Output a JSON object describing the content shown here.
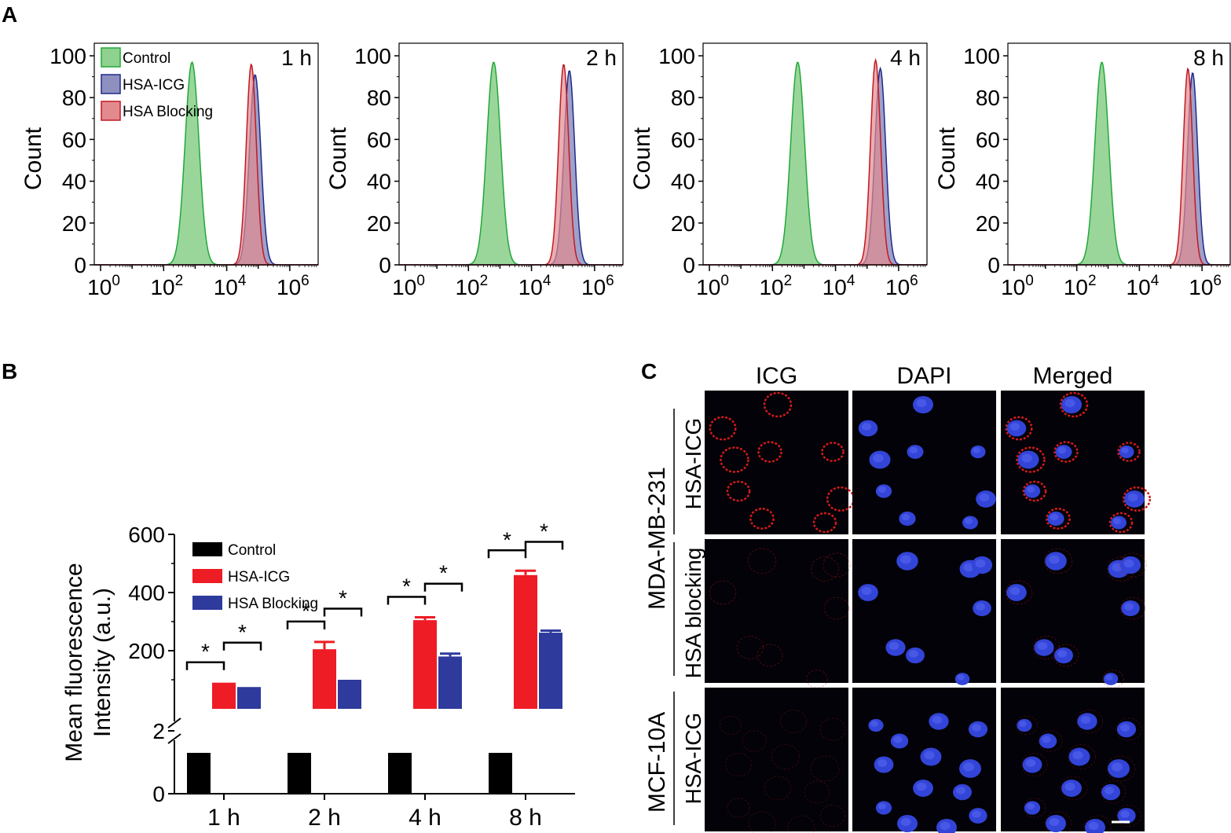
{
  "panels": {
    "A": "A",
    "B": "B",
    "C": "C"
  },
  "colors": {
    "control": "#22a83a",
    "control_fill": "#8fd18f",
    "hsaicg": "#1e2a8a",
    "hsaicg_fill": "#8e90c0",
    "blocking": "#c01a24",
    "blocking_fill": "#e38a8f",
    "bar_control": "#000000",
    "bar_hsaicg": "#ee1c25",
    "bar_blocking": "#2e3a9c"
  },
  "chart_data": [
    {
      "type": "area",
      "panel": "A",
      "title": "1 h",
      "ylabel": "Count",
      "xlabel": "",
      "xscale": "log",
      "xlim_log10": [
        -0.2,
        6.9
      ],
      "ylim": [
        0,
        100
      ],
      "yticks": [
        "0",
        "20",
        "40",
        "60",
        "80",
        "100"
      ],
      "xtick_exponents": [
        "0",
        "2",
        "4",
        "6"
      ],
      "xtick_base": "10",
      "legend": [
        "Control",
        "HSA-ICG",
        "HSA Blocking"
      ],
      "legend_position": "top-left",
      "series": [
        {
          "name": "Control",
          "peak_log10": 2.9,
          "width": 0.22,
          "height": 97
        },
        {
          "name": "HSA-ICG",
          "peak_log10": 4.9,
          "width": 0.18,
          "height": 91
        },
        {
          "name": "HSA Blocking",
          "peak_log10": 4.78,
          "width": 0.16,
          "height": 96
        }
      ]
    },
    {
      "type": "area",
      "panel": "A",
      "title": "2 h",
      "ylabel": "Count",
      "xlabel": "",
      "xscale": "log",
      "xlim_log10": [
        -0.2,
        6.9
      ],
      "ylim": [
        0,
        100
      ],
      "yticks": [
        "0",
        "20",
        "40",
        "60",
        "80",
        "100"
      ],
      "xtick_exponents": [
        "0",
        "2",
        "4",
        "6"
      ],
      "xtick_base": "10",
      "series": [
        {
          "name": "Control",
          "peak_log10": 2.8,
          "width": 0.22,
          "height": 97
        },
        {
          "name": "HSA-ICG",
          "peak_log10": 5.2,
          "width": 0.17,
          "height": 93
        },
        {
          "name": "HSA Blocking",
          "peak_log10": 5.02,
          "width": 0.16,
          "height": 96
        }
      ]
    },
    {
      "type": "area",
      "panel": "A",
      "title": "4 h",
      "ylabel": "Count",
      "xlabel": "",
      "xscale": "log",
      "xlim_log10": [
        -0.2,
        6.9
      ],
      "ylim": [
        0,
        100
      ],
      "yticks": [
        "0",
        "20",
        "40",
        "60",
        "80",
        "100"
      ],
      "xtick_exponents": [
        "0",
        "2",
        "4",
        "6"
      ],
      "xtick_base": "10",
      "series": [
        {
          "name": "Control",
          "peak_log10": 2.8,
          "width": 0.22,
          "height": 97
        },
        {
          "name": "HSA-ICG",
          "peak_log10": 5.42,
          "width": 0.17,
          "height": 94
        },
        {
          "name": "HSA Blocking",
          "peak_log10": 5.27,
          "width": 0.16,
          "height": 98
        }
      ]
    },
    {
      "type": "area",
      "panel": "A",
      "title": "8 h",
      "ylabel": "Count",
      "xlabel": "",
      "xscale": "log",
      "xlim_log10": [
        -0.2,
        6.9
      ],
      "ylim": [
        0,
        100
      ],
      "yticks": [
        "0",
        "20",
        "40",
        "60",
        "80",
        "100"
      ],
      "xtick_exponents": [
        "0",
        "2",
        "4",
        "6"
      ],
      "xtick_base": "10",
      "series": [
        {
          "name": "Control",
          "peak_log10": 2.8,
          "width": 0.22,
          "height": 97
        },
        {
          "name": "HSA-ICG",
          "peak_log10": 5.7,
          "width": 0.16,
          "height": 92
        },
        {
          "name": "HSA Blocking",
          "peak_log10": 5.55,
          "width": 0.15,
          "height": 94
        }
      ]
    },
    {
      "type": "bar",
      "panel": "B",
      "title": "",
      "ylabel_line1": "Mean fluorescence",
      "ylabel_line2": "Intensity (a.u.)",
      "xlabel": "",
      "categories": [
        "1 h",
        "2 h",
        "4 h",
        "8 h"
      ],
      "axis_break": true,
      "lower_ylim": [
        0,
        2
      ],
      "upper_ylim": [
        0,
        600
      ],
      "yticks": [
        "0",
        "2",
        "200",
        "400",
        "600"
      ],
      "legend": [
        "Control",
        "HSA-ICG",
        "HSA Blocking"
      ],
      "legend_position": "top-left",
      "significance_marker": "*",
      "series": [
        {
          "name": "Control",
          "values": [
            1.3,
            1.3,
            1.3,
            1.3
          ],
          "errors": [
            0,
            0,
            0,
            0
          ]
        },
        {
          "name": "HSA-ICG",
          "values": [
            90,
            205,
            305,
            460
          ],
          "errors": [
            0,
            25,
            10,
            15
          ]
        },
        {
          "name": "HSA Blocking",
          "values": [
            75,
            100,
            180,
            262
          ],
          "errors": [
            0,
            0,
            10,
            7
          ]
        }
      ]
    }
  ],
  "microscopy": {
    "columns": [
      "ICG",
      "DAPI",
      "Merged"
    ],
    "group_labels": [
      "MDA-MB-231",
      "MCF-10A"
    ],
    "row_labels": [
      "HSA-ICG",
      "HSA blocking",
      "HSA-ICG"
    ]
  }
}
